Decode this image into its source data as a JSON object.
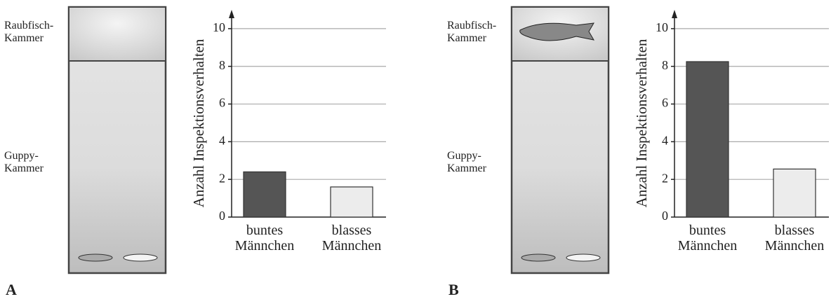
{
  "chart_data": [
    {
      "type": "bar",
      "panel_label": "A",
      "annotations": [
        "Raubfisch-Kammer",
        "Guppy-Kammer"
      ],
      "y_label": "Anzahl Inspektionsverhalten",
      "categories": [
        "buntes Männchen",
        "blasses Männchen"
      ],
      "values": [
        2.4,
        1.6
      ],
      "colors": [
        "#555555",
        "#ececec"
      ],
      "ylim": [
        0,
        11
      ],
      "yticks": [
        0,
        2,
        4,
        6,
        8,
        10
      ],
      "grid": true
    },
    {
      "type": "bar",
      "panel_label": "B",
      "annotations": [
        "Raubfisch-Kammer",
        "Guppy-Kammer"
      ],
      "y_label": "Anzahl Inspektionsverhalten",
      "categories": [
        "buntes Männchen",
        "blasses Männchen"
      ],
      "values": [
        8.25,
        2.55
      ],
      "colors": [
        "#555555",
        "#ececec"
      ],
      "ylim": [
        0,
        11
      ],
      "yticks": [
        0,
        2,
        4,
        6,
        8,
        10
      ],
      "grid": true
    }
  ]
}
